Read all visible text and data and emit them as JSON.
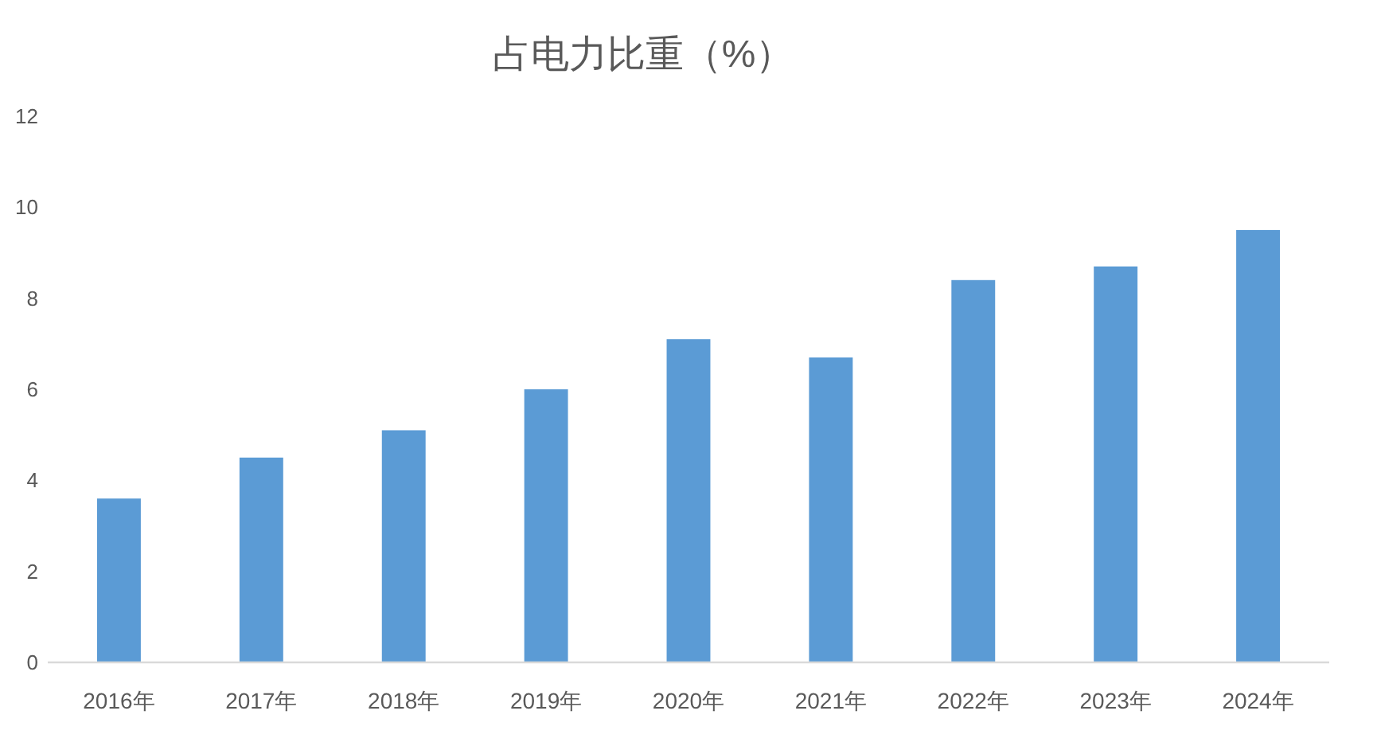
{
  "chart_data": {
    "type": "bar",
    "title": "占电力比重（%）",
    "categories": [
      "2016年",
      "2017年",
      "2018年",
      "2019年",
      "2020年",
      "2021年",
      "2022年",
      "2023年",
      "2024年"
    ],
    "values": [
      3.6,
      4.5,
      5.1,
      6.0,
      7.1,
      6.7,
      8.4,
      8.7,
      9.5
    ],
    "color": "#5b9bd5",
    "ylim": [
      0,
      12
    ],
    "yticks": [
      0,
      2,
      4,
      6,
      8,
      10,
      12
    ]
  }
}
